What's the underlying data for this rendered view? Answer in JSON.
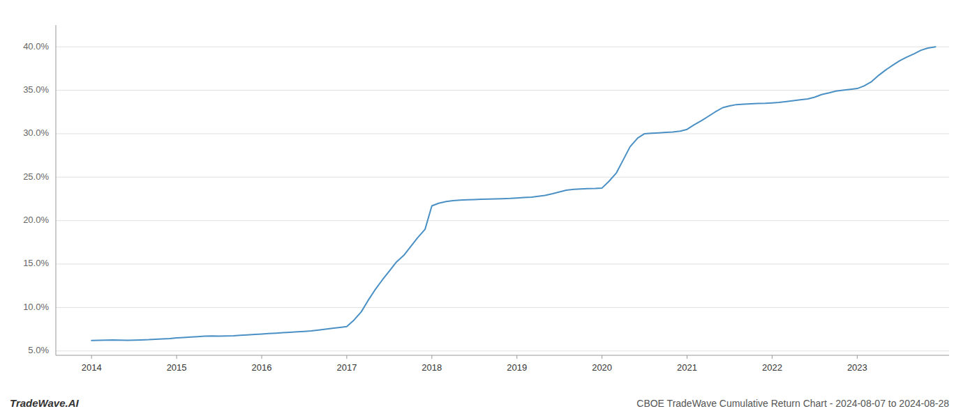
{
  "chart_data": {
    "type": "line",
    "title": "CBOE TradeWave Cumulative Return Chart - 2024-08-07 to 2024-08-28",
    "annotations": [
      "TradeWave.AI"
    ],
    "color": "#4a90c4",
    "grid": "y",
    "x": [
      2014.0,
      2014.08,
      2014.17,
      2014.25,
      2014.33,
      2014.42,
      2014.5,
      2014.58,
      2014.67,
      2014.75,
      2014.83,
      2014.92,
      2015.0,
      2015.08,
      2015.17,
      2015.25,
      2015.33,
      2015.42,
      2015.5,
      2015.58,
      2015.67,
      2015.75,
      2015.83,
      2015.92,
      2016.0,
      2016.08,
      2016.17,
      2016.25,
      2016.33,
      2016.42,
      2016.5,
      2016.58,
      2016.67,
      2016.75,
      2016.83,
      2016.92,
      2017.0,
      2017.08,
      2017.17,
      2017.25,
      2017.33,
      2017.42,
      2017.5,
      2017.58,
      2017.67,
      2017.75,
      2017.83,
      2017.92,
      2018.0,
      2018.08,
      2018.17,
      2018.25,
      2018.33,
      2018.42,
      2018.5,
      2018.58,
      2018.67,
      2018.75,
      2018.83,
      2018.92,
      2019.0,
      2019.08,
      2019.17,
      2019.25,
      2019.33,
      2019.42,
      2019.5,
      2019.58,
      2019.67,
      2019.75,
      2019.83,
      2019.92,
      2020.0,
      2020.08,
      2020.17,
      2020.25,
      2020.33,
      2020.42,
      2020.5,
      2020.58,
      2020.67,
      2020.75,
      2020.83,
      2020.92,
      2021.0,
      2021.08,
      2021.17,
      2021.25,
      2021.33,
      2021.42,
      2021.5,
      2021.58,
      2021.67,
      2021.75,
      2021.83,
      2021.92,
      2022.0,
      2022.08,
      2022.17,
      2022.25,
      2022.33,
      2022.42,
      2022.5,
      2022.58,
      2022.67,
      2022.75,
      2022.83,
      2022.92,
      2023.0,
      2023.08,
      2023.17,
      2023.25,
      2023.33,
      2023.42,
      2023.5,
      2023.58,
      2023.67,
      2023.75,
      2023.83,
      2023.92
    ],
    "values": [
      6.2,
      6.22,
      6.24,
      6.26,
      6.24,
      6.22,
      6.24,
      6.27,
      6.3,
      6.35,
      6.38,
      6.42,
      6.5,
      6.55,
      6.6,
      6.65,
      6.7,
      6.72,
      6.7,
      6.72,
      6.75,
      6.8,
      6.85,
      6.9,
      6.95,
      7.0,
      7.05,
      7.1,
      7.15,
      7.2,
      7.25,
      7.3,
      7.4,
      7.5,
      7.6,
      7.7,
      7.8,
      8.5,
      9.5,
      10.8,
      12.0,
      13.2,
      14.2,
      15.2,
      16.0,
      17.0,
      18.0,
      19.0,
      21.7,
      22.0,
      22.2,
      22.3,
      22.35,
      22.4,
      22.42,
      22.45,
      22.48,
      22.5,
      22.52,
      22.55,
      22.6,
      22.65,
      22.7,
      22.8,
      22.9,
      23.1,
      23.3,
      23.5,
      23.6,
      23.65,
      23.68,
      23.7,
      23.75,
      24.5,
      25.5,
      27.0,
      28.5,
      29.5,
      30.0,
      30.05,
      30.1,
      30.15,
      30.2,
      30.3,
      30.5,
      31.0,
      31.5,
      32.0,
      32.5,
      33.0,
      33.2,
      33.35,
      33.4,
      33.45,
      33.48,
      33.5,
      33.55,
      33.6,
      33.7,
      33.8,
      33.9,
      34.0,
      34.2,
      34.5,
      34.7,
      34.9,
      35.0,
      35.1,
      35.2,
      35.5,
      36.0,
      36.7,
      37.3,
      37.9,
      38.4,
      38.8,
      39.2,
      39.6,
      39.85,
      40.0
    ],
    "xlim": [
      2013.58,
      2024.08
    ],
    "xticks": [
      2014,
      2015,
      2016,
      2017,
      2018,
      2019,
      2020,
      2021,
      2022,
      2023
    ],
    "ylim": [
      4.5,
      42.5
    ],
    "yticks": [
      {
        "value": 5.0,
        "label": "5.0%"
      },
      {
        "value": 10.0,
        "label": "10.0%"
      },
      {
        "value": 15.0,
        "label": "15.0%"
      },
      {
        "value": 20.0,
        "label": "20.0%"
      },
      {
        "value": 25.0,
        "label": "25.0%"
      },
      {
        "value": 30.0,
        "label": "30.0%"
      },
      {
        "value": 35.0,
        "label": "35.0%"
      },
      {
        "value": 40.0,
        "label": "40.0%"
      }
    ]
  }
}
